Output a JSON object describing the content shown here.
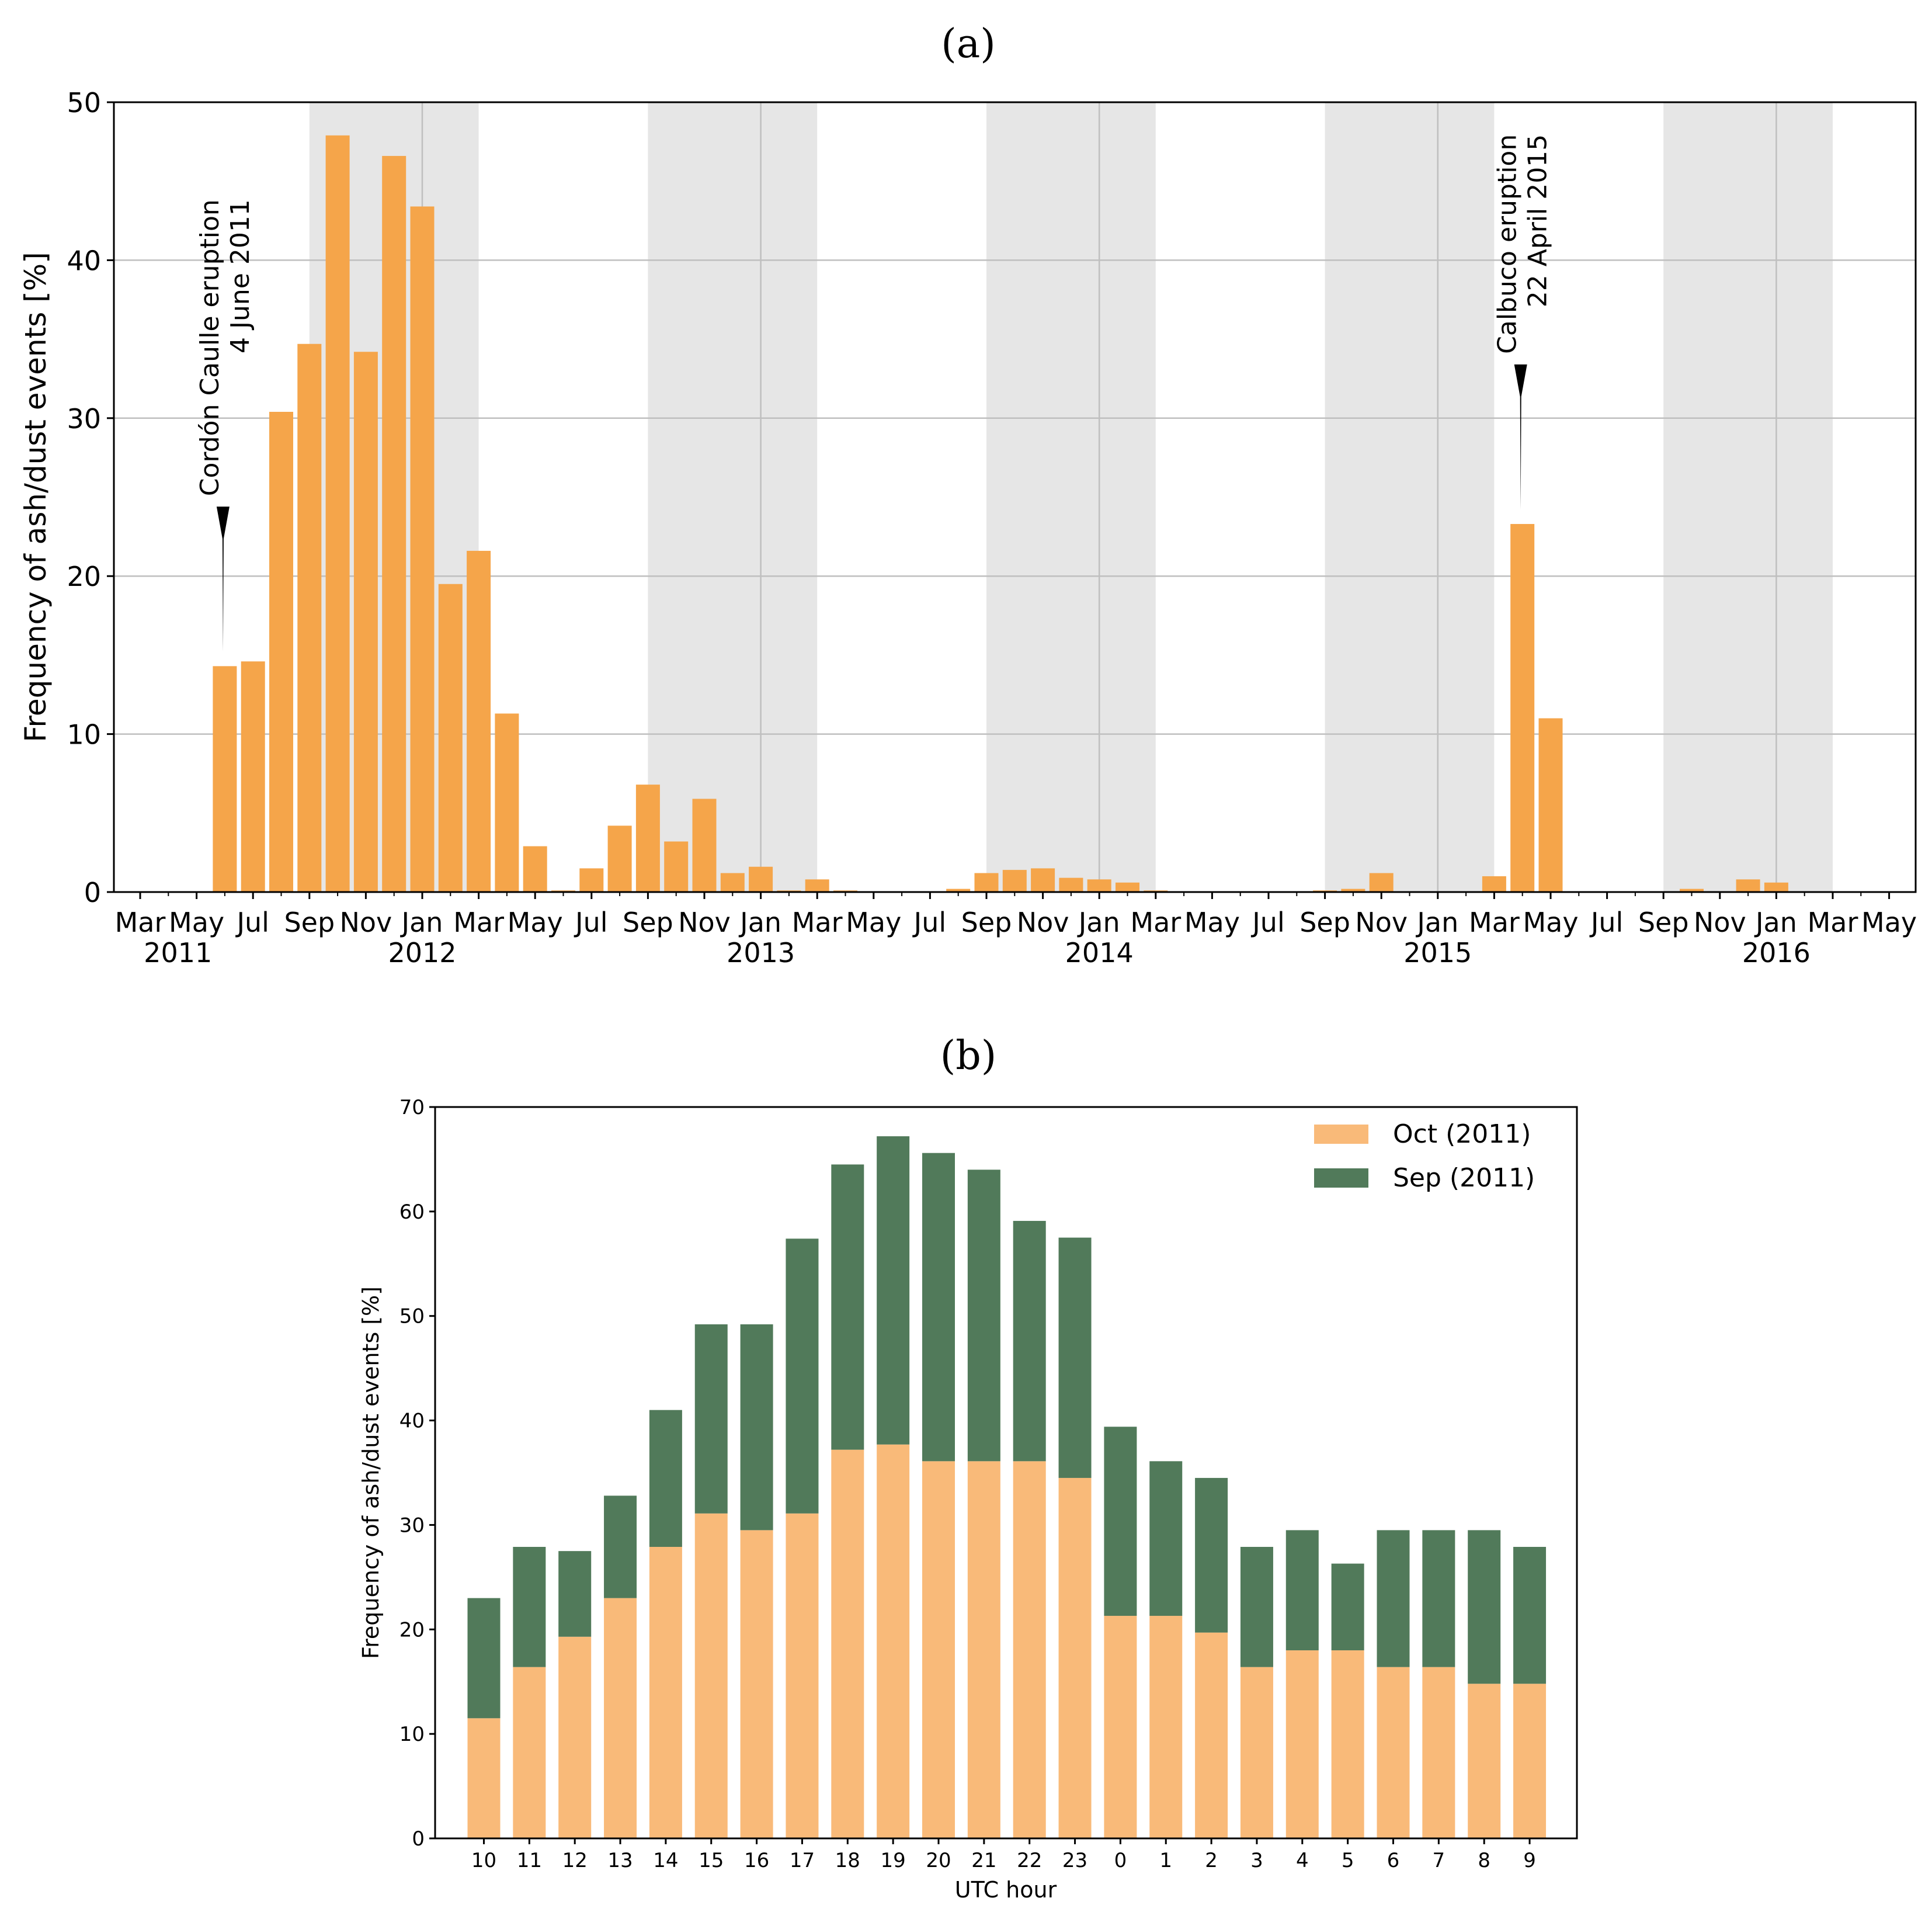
{
  "colors": {
    "orange_a": "#F5A54A",
    "orange_b": "#F9BA79",
    "green_b": "#517A5A",
    "season_shade": "#E6E6E6",
    "grid": "#BFBFBF"
  },
  "chart_data": [
    {
      "panel_label": "(a)",
      "type": "bar",
      "ylabel": "Frequency of ash/dust events [%]",
      "ylim": [
        0,
        50
      ],
      "yticks": [
        "0",
        "10",
        "20",
        "30",
        "40",
        "50"
      ],
      "x_month_labels": [
        "Mar",
        "May",
        "Jul",
        "Sep",
        "Nov",
        "Jan",
        "Mar",
        "May",
        "Jul",
        "Sep",
        "Nov",
        "Jan",
        "Mar",
        "May",
        "Jul",
        "Sep",
        "Nov",
        "Jan",
        "Mar",
        "May",
        "Jul",
        "Sep",
        "Nov",
        "Jan",
        "Mar",
        "May",
        "Jul",
        "Sep",
        "Nov",
        "Jan",
        "Mar",
        "May"
      ],
      "year_labels": [
        "2011",
        "2012",
        "2013",
        "2014",
        "2015",
        "2016"
      ],
      "shaded_periods": [
        {
          "from": "2011-09",
          "to": "2012-03"
        },
        {
          "from": "2012-09",
          "to": "2013-03"
        },
        {
          "from": "2013-09",
          "to": "2014-03"
        },
        {
          "from": "2014-09",
          "to": "2015-03"
        },
        {
          "from": "2015-09",
          "to": "2016-03"
        }
      ],
      "months": [
        "2011-06",
        "2011-07",
        "2011-08",
        "2011-09",
        "2011-10",
        "2011-11",
        "2011-12",
        "2012-01",
        "2012-02",
        "2012-03",
        "2012-04",
        "2012-05",
        "2012-06",
        "2012-07",
        "2012-08",
        "2012-09",
        "2012-10",
        "2012-11",
        "2012-12",
        "2013-01",
        "2013-02",
        "2013-03",
        "2013-04",
        "2013-08",
        "2013-09",
        "2013-10",
        "2013-11",
        "2013-12",
        "2014-01",
        "2014-02",
        "2014-03",
        "2014-09",
        "2014-10",
        "2014-11",
        "2015-03",
        "2015-04",
        "2015-05",
        "2015-10",
        "2015-12",
        "2016-01"
      ],
      "values": [
        14.3,
        14.6,
        30.4,
        34.7,
        47.9,
        34.2,
        46.6,
        43.4,
        19.5,
        21.6,
        11.3,
        2.9,
        0.1,
        1.5,
        4.2,
        6.8,
        3.2,
        5.9,
        1.2,
        1.6,
        0.1,
        0.8,
        0.1,
        0.2,
        1.2,
        1.4,
        1.5,
        0.9,
        0.8,
        0.6,
        0.1,
        0.1,
        0.2,
        1.2,
        1.0,
        23.3,
        11.0,
        0.2,
        0.8,
        0.6
      ],
      "annotations": [
        {
          "line1": "Cordón Caulle eruption",
          "line2": "4 June 2011",
          "month": "2011-06",
          "arrow_tip_value": 15.2,
          "arrow_base_value": 24.4
        },
        {
          "line1": "Calbuco eruption",
          "line2": "22 April 2015",
          "month": "2015-04",
          "arrow_tip_value": 24.2,
          "arrow_base_value": 33.4
        }
      ]
    },
    {
      "panel_label": "(b)",
      "type": "bar",
      "stacked": true,
      "xlabel": "UTC hour",
      "ylabel": "Frequency of ash/dust events [%]",
      "ylim": [
        0,
        70
      ],
      "yticks": [
        "0",
        "10",
        "20",
        "30",
        "40",
        "50",
        "60",
        "70"
      ],
      "categories": [
        "10",
        "11",
        "12",
        "13",
        "14",
        "15",
        "16",
        "17",
        "18",
        "19",
        "20",
        "21",
        "22",
        "23",
        "0",
        "1",
        "2",
        "3",
        "4",
        "5",
        "6",
        "7",
        "8",
        "9"
      ],
      "series": [
        {
          "name": "Oct (2011)",
          "values": [
            11.5,
            16.4,
            19.3,
            23.0,
            27.9,
            31.1,
            29.5,
            31.1,
            37.2,
            37.7,
            36.1,
            36.1,
            36.1,
            34.5,
            21.3,
            21.3,
            19.7,
            16.4,
            18.0,
            18.0,
            16.4,
            16.4,
            14.8,
            14.8
          ]
        },
        {
          "name": "Sep (2011)",
          "values": [
            11.5,
            11.5,
            8.2,
            9.8,
            13.1,
            18.1,
            19.7,
            26.3,
            27.3,
            29.5,
            29.5,
            27.9,
            23.0,
            23.0,
            18.1,
            14.8,
            14.8,
            11.5,
            11.5,
            8.3,
            13.1,
            13.1,
            14.7,
            13.1
          ]
        }
      ],
      "legend_position": "top-right"
    }
  ]
}
